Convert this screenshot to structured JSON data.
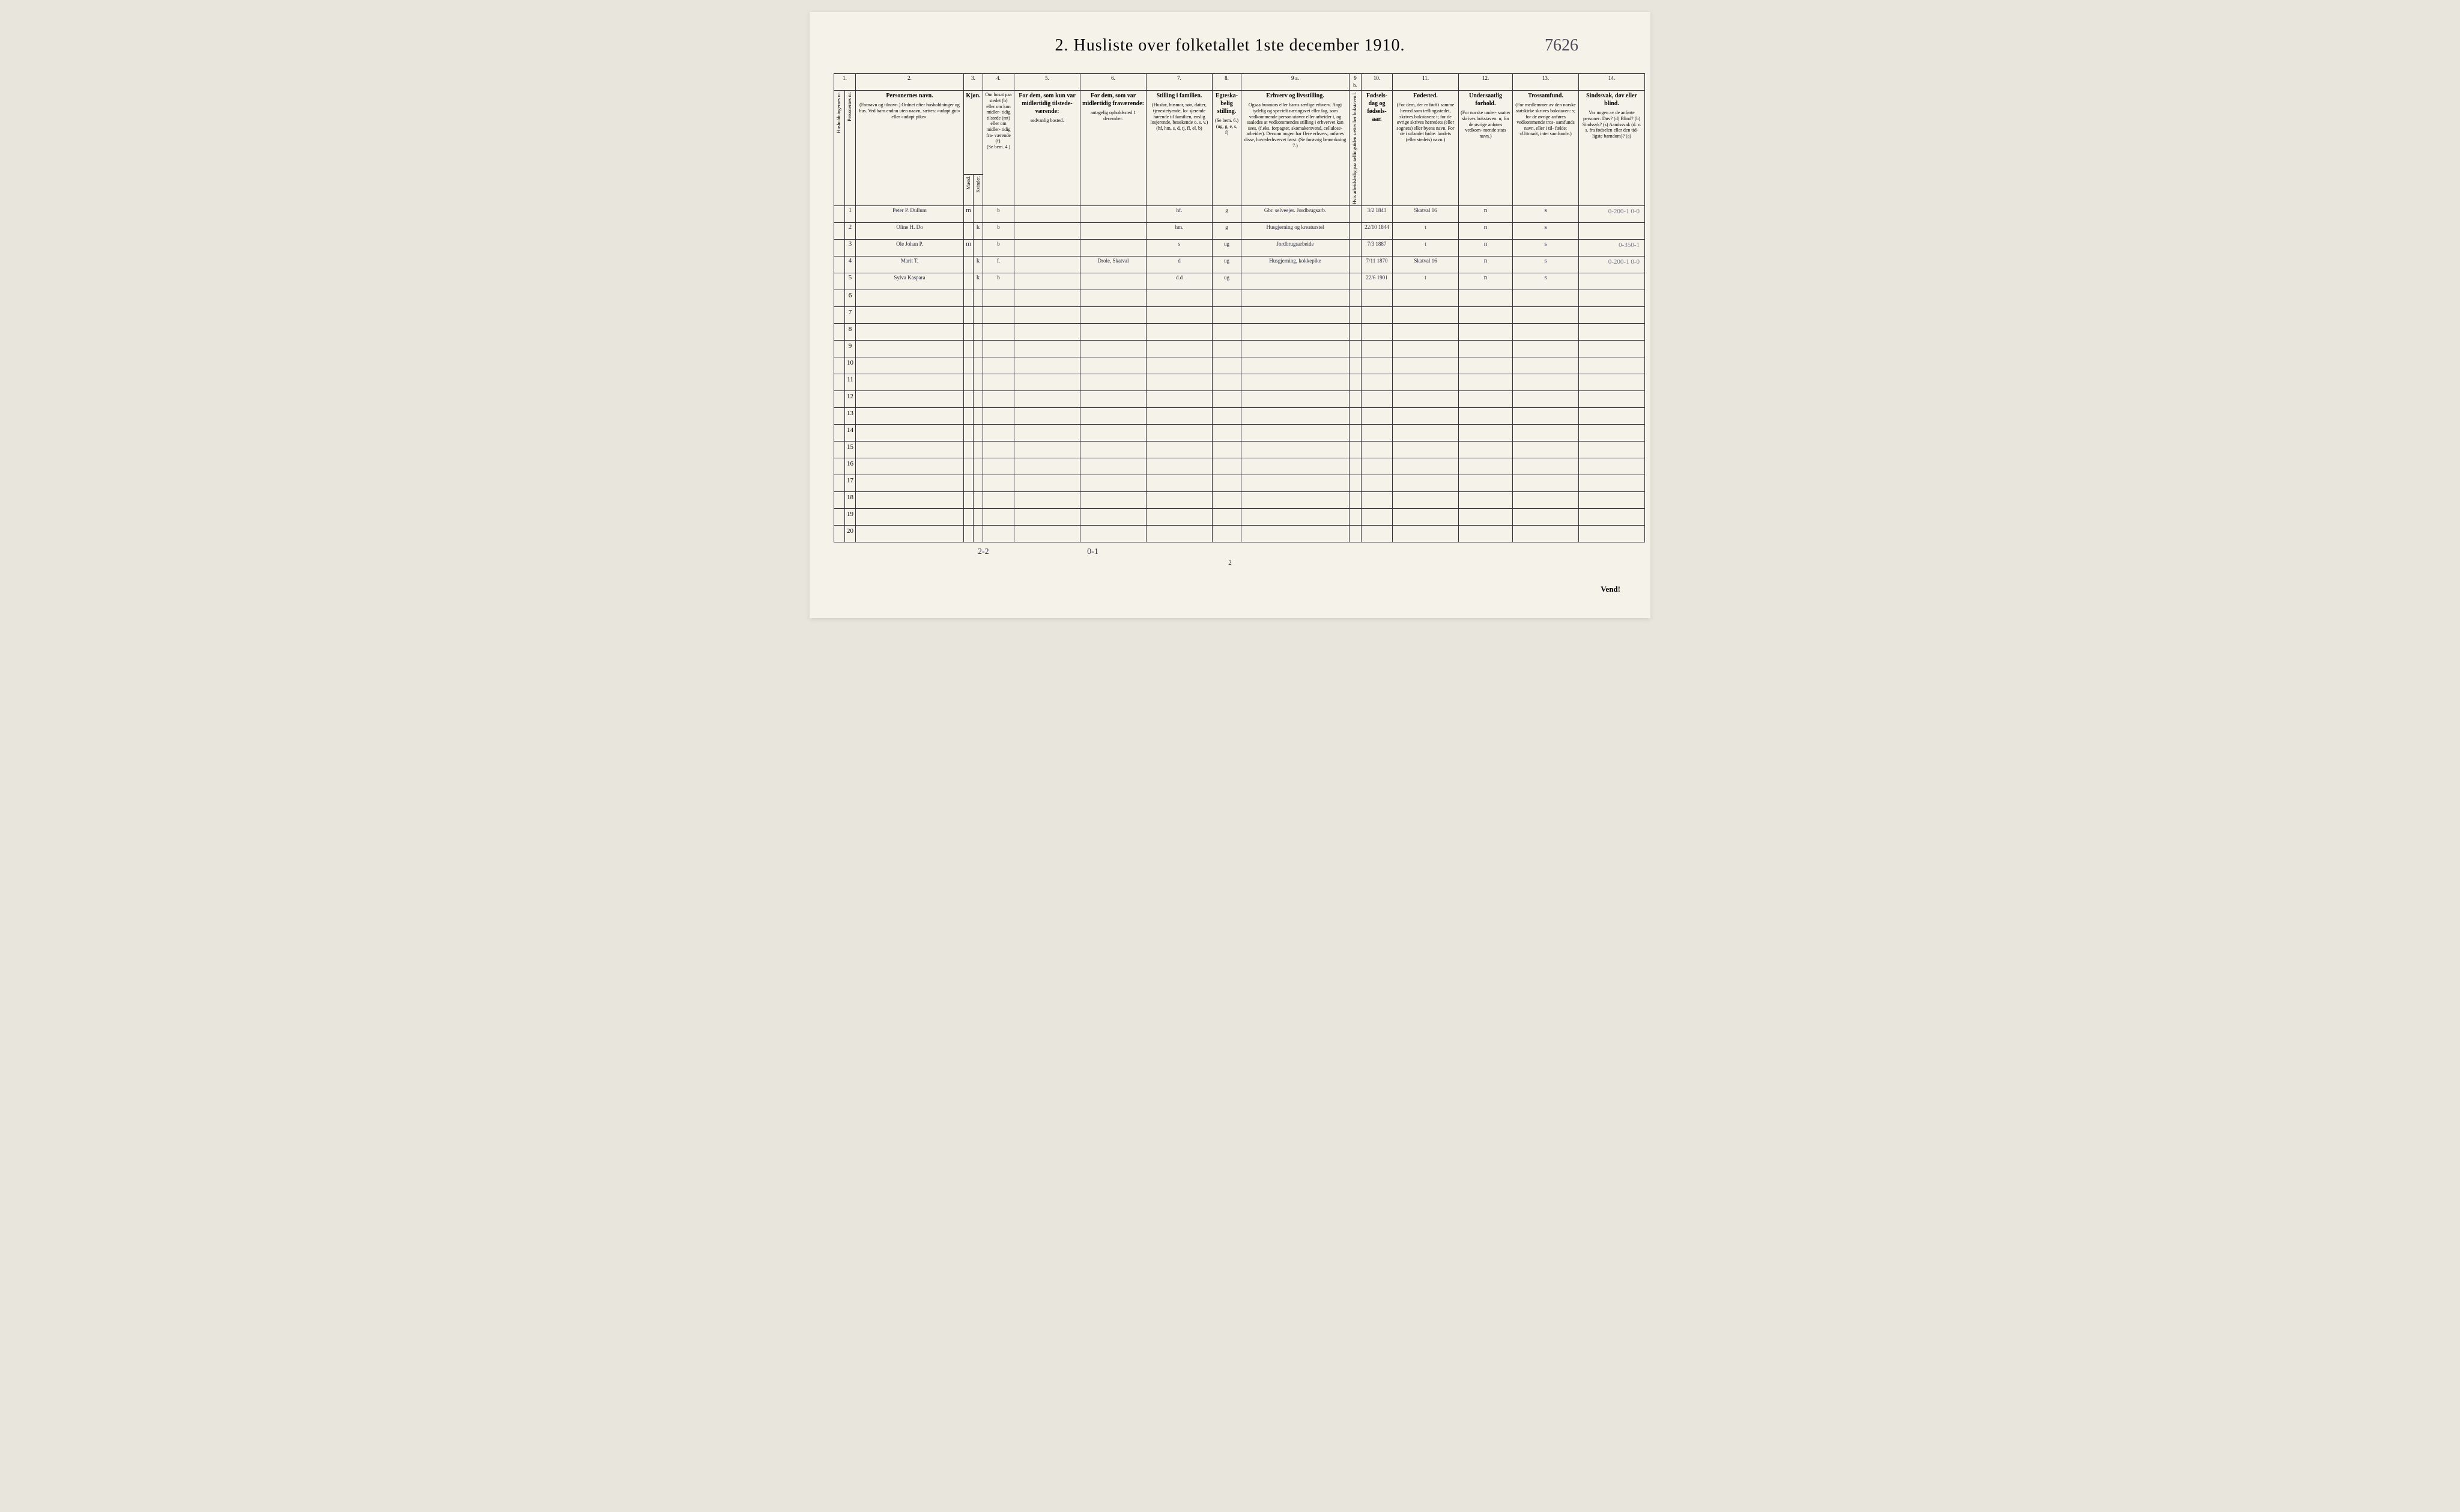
{
  "title": "2.  Husliste over folketallet 1ste december 1910.",
  "handwritten_code": "7626",
  "page_num": "2",
  "vend": "Vend!",
  "col_nums": [
    "1.",
    "2.",
    "3.",
    "4.",
    "5.",
    "6.",
    "7.",
    "8.",
    "9 a.",
    "9 b.",
    "10.",
    "11.",
    "12.",
    "13.",
    "14."
  ],
  "headers": {
    "c1": {
      "vert": "Husholdningernes nr."
    },
    "c1b": {
      "vert": "Personernes nr."
    },
    "c2": {
      "main": "Personernes navn.",
      "sub": "(Fornavn og tilnavn.)\nOrdnet efter husholdninger og hus.\nVed barn endnu uten naavn, sættes: «udøpt gut»\neller «udøpt pike»."
    },
    "c3": {
      "main": "Kjøn.",
      "sub_l": "Mænd.",
      "sub_r": "Kvinder.",
      "bottom": "m.  k."
    },
    "c4": {
      "main": "Om bosat\npaa stedet\n(b) eller om\nkun midler-\ntidig tilstede\n(mt) eller\nom midler-\ntidig fra-\nværende (f).",
      "sub": "(Se bem. 4.)"
    },
    "c5": {
      "main": "For dem, som kun var\nmidlertidig tilstede-\nværende:",
      "sub": "sedvanlig bosted."
    },
    "c6": {
      "main": "For dem, som var\nmidlertidig\nfraværende:",
      "sub": "antagelig opholdssted\n1 december."
    },
    "c7": {
      "main": "Stilling i familien.",
      "sub": "(Husfar, husmor, søn,\ndatter, tjenestetyende, lo-\nsjerende hørende til familien,\nenslig losjerende, besøkende\no. s. v.)\n(hf, hm, s, d, tj, fl,\nel, b)"
    },
    "c8": {
      "main": "Egteska-\nbelig\nstilling.",
      "sub": "(Se bem. 6.)\n(ug, g,\ne, s, f)"
    },
    "c9a": {
      "main": "Erhverv og livsstilling.",
      "sub": "Ogsaa husmors eller barns særlige erhverv.\nAngi tydelig og specielt næringsvei eller fag, som\nvedkommende person utøver eller arbeider i,\nog saaledes at vedkommendes stilling i erhvervet kan\nsees, (f.eks. forpagter, skomakersvend, cellulose-\narbeider). Dersom nogen har flere erhverv,\nanføres disse, hovederhvervet først.\n(Se forøvrig bemerkning 7.)"
    },
    "c9b": {
      "vert": "Hvis arbeidsledig\npaa tællingstiden sættes\nher bokstaven l."
    },
    "c10": {
      "main": "Fødsels-\ndag\nog\nfødsels-\naar."
    },
    "c11": {
      "main": "Fødested.",
      "sub": "(For dem, der er født\ni samme herred som\ntællingsstedet,\nskrives bokstaven: t;\nfor de øvrige skrives\nherredets (eller sognets)\neller byens navn.\nFor de i utlandet fødte:\nlandets (eller stedets)\nnavn.)"
    },
    "c12": {
      "main": "Undersaatlig\nforhold.",
      "sub": "(For norske under-\nsaatter skrives\nbokstaven: n;\nfor de øvrige\nanføres vedkom-\nmende stats navn.)"
    },
    "c13": {
      "main": "Trossamfund.",
      "sub": "(For medlemmer av\nden norske statskirke\nskrives bokstaven: s;\nfor de øvrige anføres\nvedkommende tros-\nsamfunds navn, eller i til-\nfælde: «Uttraadt, intet\nsamfund».)"
    },
    "c14": {
      "main": "Sindssvak, døv\neller blind.",
      "sub": "Var nogen av de anførte\npersoner:\nDøv?            (d)\nBlind?          (b)\nSindssyk?     (s)\nAandssvak (d. v. s. fra\nfødselen eller den tid-\nligste barndom)? (a)"
    }
  },
  "rows": [
    {
      "n": "1",
      "navn": "Peter P. Dullum",
      "mk": "m",
      "bosat": "b",
      "c5": "",
      "c6": "",
      "fam": "hf.",
      "egt": "g",
      "erhverv": "Gbr. selveejer. Jordbrugsarb.",
      "c9b": "",
      "dato": "3/2 1843",
      "fodested": "Skatval 16",
      "under": "n",
      "tros": "s",
      "margin": "0-200-1\n0-0"
    },
    {
      "n": "2",
      "navn": "Oline H.       Do",
      "mk": "k",
      "bosat": "b",
      "c5": "",
      "c6": "",
      "fam": "hm.",
      "egt": "g",
      "erhverv": "Husgjerning og kreaturstel",
      "c9b": "",
      "dato": "22/10 1844",
      "fodested": "t",
      "under": "n",
      "tros": "s",
      "margin": ""
    },
    {
      "n": "3",
      "navn": "Ole Johan P.",
      "mk": "m",
      "bosat": "b",
      "c5": "",
      "c6": "",
      "fam": "s",
      "egt": "ug",
      "erhverv": "Jordbrugsarbeide",
      "c9b": "",
      "dato": "7/3 1887",
      "fodested": "t",
      "under": "n",
      "tros": "s",
      "margin": "0-350-1"
    },
    {
      "n": "4",
      "navn": "Marit  T.",
      "mk": "k",
      "bosat": "f.",
      "c5": "",
      "c6": "Drole, Skatval",
      "fam": "d",
      "egt": "ug",
      "erhverv": "Husgjerning, kokkepike",
      "c9b": "",
      "dato": "7/11 1870",
      "fodested": "Skatval 16",
      "under": "n",
      "tros": "s",
      "margin": "0-200-1\n0-0"
    },
    {
      "n": "5",
      "navn": "Sylva Kaspara",
      "mk": "k",
      "bosat": "b",
      "c5": "",
      "c6": "",
      "fam": "d.d",
      "egt": "ug",
      "erhverv": "",
      "c9b": "",
      "dato": "22/6 1901",
      "fodested": "t",
      "under": "n",
      "tros": "s",
      "margin": ""
    }
  ],
  "empty_row_nums": [
    "6",
    "7",
    "8",
    "9",
    "10",
    "11",
    "12",
    "13",
    "14",
    "15",
    "16",
    "17",
    "18",
    "19",
    "20"
  ],
  "bottom_note_left": "2-2",
  "bottom_note_mid": "0-1",
  "col_widths": {
    "c1": 18,
    "c1b": 18,
    "c2": 180,
    "c3m": 16,
    "c3k": 16,
    "c4": 52,
    "c5": 110,
    "c6": 110,
    "c7": 110,
    "c8": 48,
    "c9a": 180,
    "c9b": 20,
    "c10": 52,
    "c11": 110,
    "c12": 90,
    "c13": 110,
    "c14": 110
  },
  "colors": {
    "paper": "#f5f3e9",
    "ink": "#2a2a3a",
    "pencil": "#7a7a8a",
    "border": "#333333"
  }
}
